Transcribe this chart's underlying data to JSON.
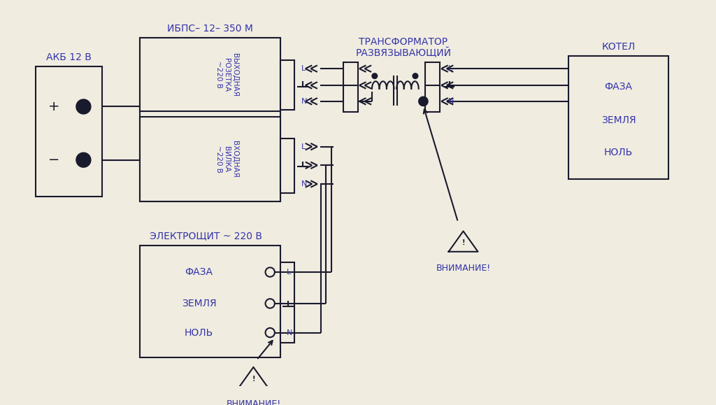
{
  "bg_color": "#f0ece0",
  "line_color": "#1a1a2e",
  "text_color": "#3333aa",
  "figsize": [
    10.24,
    5.79
  ],
  "dpi": 100,
  "akb_label": "АКБ 12 В",
  "ups_label": "ИБПС– 12– 350 М",
  "trafo_label_line1": "ТРАНСФОРМАТОР",
  "trafo_label_line2": "РАЗВЯЗЫВАЮЩИЙ",
  "kotel_label": "КОТЕЛ",
  "electro_label": "ЭЛЕКТРОЩИТ ~ 220 В",
  "vnim": "ВНИМАНИЕ!"
}
